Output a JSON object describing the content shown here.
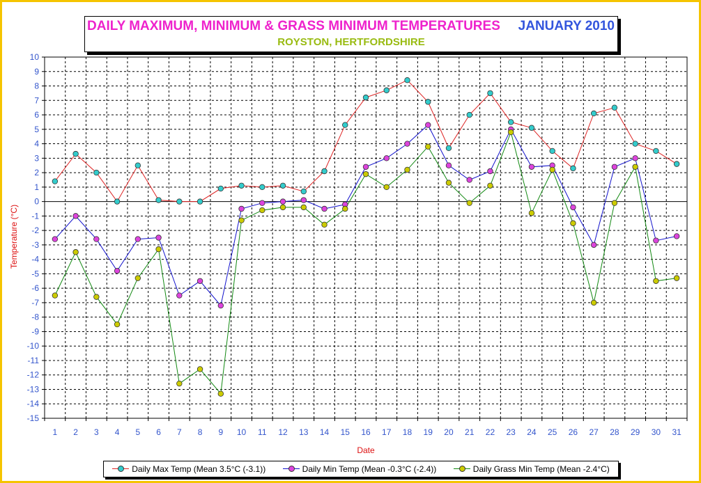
{
  "title": {
    "main": "DAILY MAXIMUM, MINIMUM & GRASS MINIMUM TEMPERATURES",
    "date": "JANUARY 2010",
    "subtitle": "ROYSTON, HERTFORDSHIRE"
  },
  "colors": {
    "frame": "#F5C400",
    "title_main": "#EE22CC",
    "title_date": "#3355DD",
    "subtitle": "#99BB11",
    "axis_label": "#DD1111",
    "tick_label": "#3355CC"
  },
  "chart_data": {
    "type": "line",
    "xlabel": "Date",
    "ylabel": "Temperature (°C)",
    "x": [
      1,
      2,
      3,
      4,
      5,
      6,
      7,
      8,
      9,
      10,
      11,
      12,
      13,
      14,
      15,
      16,
      17,
      18,
      19,
      20,
      21,
      22,
      23,
      24,
      25,
      26,
      27,
      28,
      29,
      30,
      31
    ],
    "ylim": [
      -15,
      10
    ],
    "yticks": [
      10,
      9,
      8,
      7,
      6,
      5,
      4,
      3,
      2,
      1,
      0,
      -1,
      -2,
      -3,
      -4,
      -5,
      -6,
      -7,
      -8,
      -9,
      -10,
      -11,
      -12,
      -13,
      -14,
      -15
    ],
    "grid": true,
    "legend_position": "bottom",
    "series": [
      {
        "name": "Daily Max Temp (Mean 3.5°C (-3.1))",
        "line_color": "#DD2222",
        "marker_color": "#33CCCC",
        "values": [
          1.4,
          3.3,
          2.0,
          0.0,
          2.5,
          0.1,
          0.0,
          0.0,
          0.9,
          1.1,
          1.0,
          1.1,
          0.7,
          2.1,
          5.3,
          7.2,
          7.7,
          8.4,
          6.9,
          3.7,
          6.0,
          7.5,
          5.5,
          5.1,
          3.5,
          2.3,
          6.1,
          6.5,
          4.0,
          3.5,
          2.6
        ]
      },
      {
        "name": "Daily Min Temp (Mean -0.3°C (-2.4))",
        "line_color": "#1111CC",
        "marker_color": "#DD44DD",
        "values": [
          -2.6,
          -1.0,
          -2.6,
          -4.8,
          -2.6,
          -2.5,
          -6.5,
          -5.5,
          -7.2,
          -0.5,
          -0.1,
          0.0,
          0.1,
          -0.5,
          -0.2,
          2.4,
          3.0,
          4.0,
          5.3,
          2.5,
          1.5,
          2.1,
          5.0,
          2.4,
          2.5,
          -0.4,
          -3.0,
          2.4,
          3.0,
          -2.7,
          -2.4
        ]
      },
      {
        "name": "Daily Grass Min Temp (Mean -2.4°C)",
        "line_color": "#118811",
        "marker_color": "#CCCC00",
        "values": [
          -6.5,
          -3.5,
          -6.6,
          -8.5,
          -5.3,
          -3.3,
          -12.6,
          -11.6,
          -13.3,
          -1.3,
          -0.6,
          -0.4,
          -0.4,
          -1.6,
          -0.5,
          1.9,
          1.0,
          2.2,
          3.8,
          1.3,
          -0.1,
          1.1,
          4.8,
          -0.8,
          2.2,
          -1.5,
          -7.0,
          -0.1,
          2.4,
          -5.5,
          -5.3
        ]
      }
    ]
  }
}
